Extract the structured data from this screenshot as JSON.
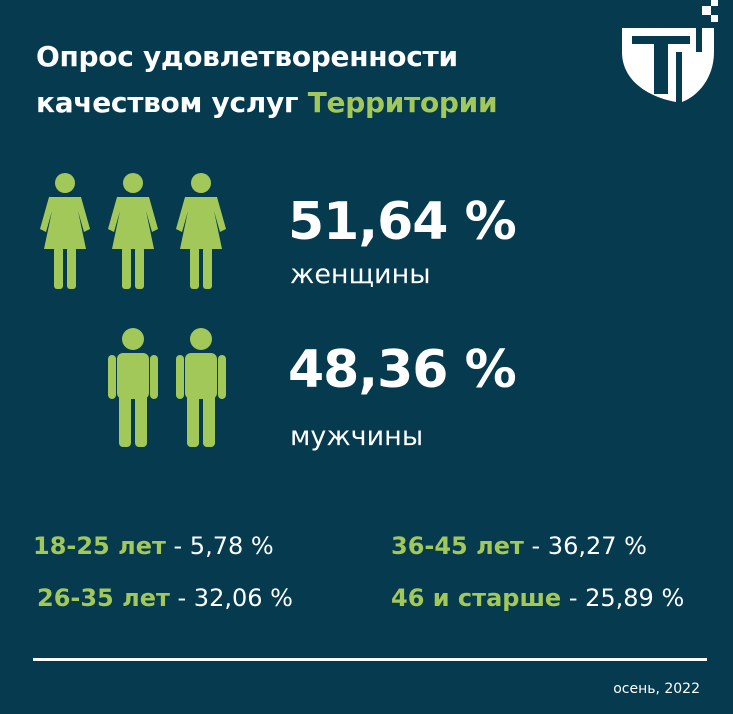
{
  "header": {
    "title_line1": "Опрос удовлетворенности",
    "title_line2_prefix": "качеством услуг ",
    "title_line2_accent": "Территории"
  },
  "colors": {
    "background": "#053a4f",
    "accent": "#a3c85a",
    "text": "#ffffff"
  },
  "icons": {
    "logo": "territory-logo-icon",
    "female": "woman-figure-icon",
    "male": "man-figure-icon"
  },
  "gender": {
    "women": {
      "value": "51,64 %",
      "label": "женщины"
    },
    "men": {
      "value": "48,36 %",
      "label": "мужчины"
    }
  },
  "age_groups": [
    {
      "range": "18-25 лет",
      "value": " - 5,78 %"
    },
    {
      "range": "36-45 лет",
      "value": " - 36,27 %"
    },
    {
      "range": "26-35 лет",
      "value": " - 32,06 %"
    },
    {
      "range": "46 и старше",
      "value": " - 25,89 %"
    }
  ],
  "footer": {
    "date": "осень, 2022"
  }
}
